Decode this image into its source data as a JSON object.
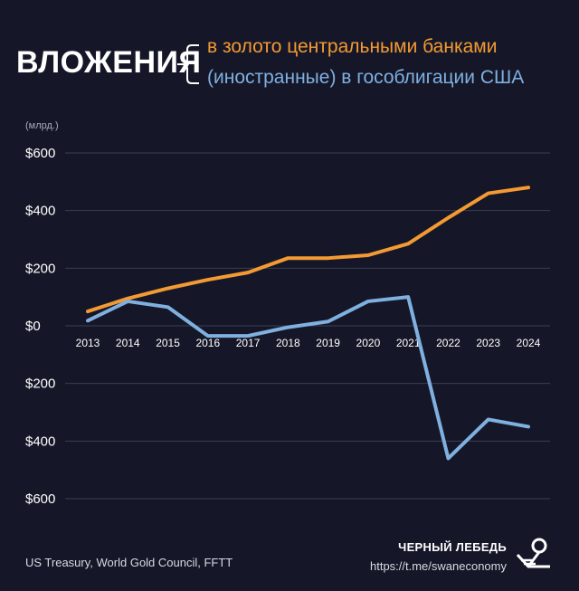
{
  "header": {
    "title": "ВЛОЖЕНИЯ"
  },
  "footer": {
    "source": "US Treasury, World Gold Council, FFTT",
    "brand_name": "ЧЕРНЫЙ ЛЕБЕДЬ",
    "brand_link": "https://t.me/swaneconomy"
  },
  "colors": {
    "background": "#151728",
    "gold": "#f39a33",
    "bonds": "#7fb0e0",
    "grid": "#3a3d52"
  },
  "chart_data": {
    "type": "line",
    "ylabel": "(млрд.)",
    "ylim": [
      -600,
      600
    ],
    "yticks": [
      {
        "value": 600,
        "label": "$600"
      },
      {
        "value": 400,
        "label": "$400"
      },
      {
        "value": 200,
        "label": "$200"
      },
      {
        "value": 0,
        "label": "$0"
      },
      {
        "value": -200,
        "label": "$200"
      },
      {
        "value": -400,
        "label": "$400"
      },
      {
        "value": -600,
        "label": "$600"
      }
    ],
    "x": [
      "2013",
      "2014",
      "2015",
      "2016",
      "2017",
      "2018",
      "2019",
      "2020",
      "2021",
      "2022",
      "2023",
      "2024"
    ],
    "grid": true,
    "series": [
      {
        "name": "в золото центральными банками",
        "color": "#f39a33",
        "values": [
          50,
          95,
          130,
          160,
          185,
          235,
          235,
          245,
          285,
          375,
          460,
          480
        ]
      },
      {
        "name": "(иностранные) в гособлигации США",
        "color": "#7fb0e0",
        "values": [
          18,
          85,
          65,
          -35,
          -35,
          -5,
          15,
          85,
          100,
          -460,
          -325,
          -350
        ]
      }
    ]
  }
}
